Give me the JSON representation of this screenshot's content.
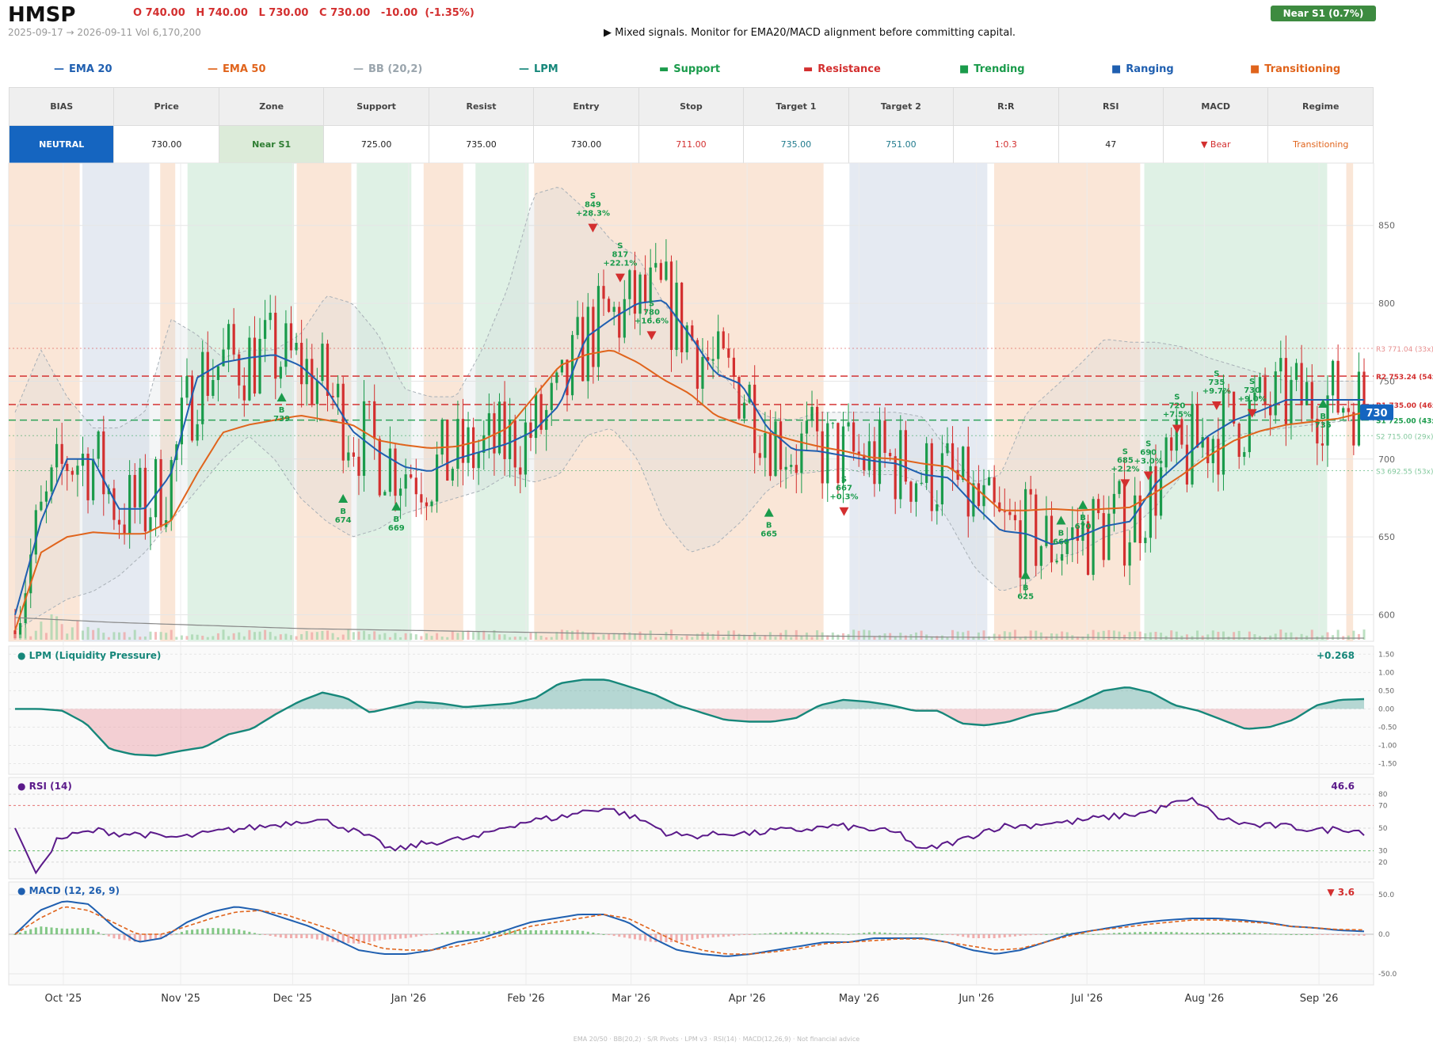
{
  "header": {
    "ticker": "HMSP",
    "ohlc": "O 740.00   H 740.00   L 730.00   C 730.00   -10.00  (-1.35%)",
    "range": "2025-09-17 → 2026-09-11   Vol 6,170,200",
    "signal": "▶  Mixed signals. Monitor for EMA20/MACD alignment before committing capital.",
    "badge": "Near S1  (0.7%)"
  },
  "legend": [
    {
      "label": "EMA 20",
      "symbol": "—",
      "color": "#1f5fb0"
    },
    {
      "label": "EMA 50",
      "symbol": "—",
      "color": "#e0641c"
    },
    {
      "label": "BB (20,2)",
      "symbol": "—",
      "color": "#9aa5ad"
    },
    {
      "label": "LPM",
      "symbol": "—",
      "color": "#16877a"
    },
    {
      "label": "Support",
      "symbol": "▬",
      "color": "#1a9b4b"
    },
    {
      "label": "Resistance",
      "symbol": "▬",
      "color": "#d32f2f"
    },
    {
      "label": "Trending",
      "symbol": "■",
      "color": "#1a9b4b"
    },
    {
      "label": "Ranging",
      "symbol": "■",
      "color": "#1f5fb0"
    },
    {
      "label": "Transitioning",
      "symbol": "■",
      "color": "#e0641c"
    }
  ],
  "summary_table": {
    "headers": [
      "BIAS",
      "Price",
      "Zone",
      "Support",
      "Resist",
      "Entry",
      "Stop",
      "Target 1",
      "Target 2",
      "R:R",
      "RSI",
      "MACD",
      "Regime"
    ],
    "values": [
      "NEUTRAL",
      "730.00",
      "Near S1",
      "725.00",
      "735.00",
      "730.00",
      "711.00",
      "735.00",
      "751.00",
      "1:0.3",
      "47",
      "▼ Bear",
      "Transitioning"
    ],
    "colors": [
      "#ffffff",
      "#222222",
      "#2e7d32",
      "#222222",
      "#222222",
      "#222222",
      "#d32f2f",
      "#1f7a8c",
      "#1f7a8c",
      "#d32f2f",
      "#222222",
      "#d32f2f",
      "#e0641c"
    ],
    "backgrounds": [
      "#1565c0",
      "#ffffff",
      "#dcebd9",
      "#ffffff",
      "#ffffff",
      "#ffffff",
      "#ffffff",
      "#ffffff",
      "#ffffff",
      "#ffffff",
      "#ffffff",
      "#ffffff",
      "#ffffff"
    ]
  },
  "chart_data": [
    {
      "type": "candlestick",
      "title": "",
      "x_ticks": [
        "Oct '25",
        "Nov '25",
        "Dec '25",
        "Jan '26",
        "Feb '26",
        "Mar '26",
        "Apr '26",
        "May '26",
        "Jun '26",
        "Jul '26",
        "Aug '26",
        "Sep '26"
      ],
      "y_ticks": [
        600,
        650,
        700,
        750,
        800,
        850
      ],
      "ylim": [
        583,
        890
      ],
      "last_price": "730",
      "levels": [
        {
          "label": "R3 771.04 (33x)",
          "value": 771.04,
          "kind": "resistance",
          "style": "dotted"
        },
        {
          "label": "R2 753.24 (54x)",
          "value": 753.24,
          "kind": "resistance",
          "style": "dashed"
        },
        {
          "label": "R1 735.00 (46x)",
          "value": 735.0,
          "kind": "resistance",
          "style": "dashed"
        },
        {
          "label": "S1 725.00 (43x)",
          "value": 725.0,
          "kind": "support",
          "style": "dashed"
        },
        {
          "label": "S2 715.00 (29x)",
          "value": 715.0,
          "kind": "support",
          "style": "dotted"
        },
        {
          "label": "S3 692.55 (53x)",
          "value": 692.55,
          "kind": "support",
          "style": "dotted"
        }
      ],
      "series": [
        {
          "name": "EMA 20",
          "values": [
            600,
            660,
            700,
            700,
            668,
            668,
            690,
            752,
            762,
            765,
            767,
            760,
            745,
            718,
            705,
            695,
            692,
            700,
            705,
            710,
            718,
            735,
            778,
            790,
            800,
            802,
            780,
            755,
            748,
            720,
            706,
            705,
            702,
            699,
            697,
            690,
            688,
            670,
            654,
            652,
            645,
            650,
            657,
            660,
            685,
            700,
            715,
            725,
            731,
            738,
            738,
            738,
            738
          ]
        },
        {
          "name": "EMA 50",
          "values": [
            590,
            640,
            650,
            653,
            652,
            652,
            660,
            690,
            717,
            722,
            725,
            728,
            725,
            722,
            712,
            709,
            707,
            708,
            712,
            720,
            740,
            760,
            767,
            770,
            762,
            751,
            742,
            728,
            722,
            717,
            712,
            708,
            705,
            701,
            700,
            697,
            695,
            682,
            667,
            667,
            668,
            667,
            668,
            669,
            679,
            690,
            702,
            712,
            718,
            722,
            724,
            726,
            730
          ]
        },
        {
          "name": "BB Upper",
          "values": [
            730,
            770,
            740,
            720,
            720,
            730,
            790,
            780,
            765,
            770,
            770,
            780,
            805,
            800,
            780,
            745,
            740,
            740,
            770,
            810,
            870,
            875,
            860,
            840,
            830,
            800,
            780,
            760,
            740,
            727,
            725,
            730,
            730,
            730,
            730,
            727,
            705,
            685,
            690,
            730,
            745,
            760,
            777,
            775,
            775,
            772,
            765,
            760,
            755,
            750,
            750,
            750,
            750
          ]
        },
        {
          "name": "BB Lower",
          "values": [
            590,
            600,
            610,
            615,
            625,
            640,
            660,
            680,
            700,
            715,
            700,
            675,
            660,
            650,
            655,
            665,
            670,
            675,
            680,
            690,
            685,
            690,
            715,
            720,
            700,
            660,
            640,
            645,
            660,
            680,
            690,
            692,
            694,
            690,
            690,
            685,
            660,
            630,
            615,
            620,
            635,
            640,
            650,
            655,
            670,
            690,
            705,
            715,
            718,
            720,
            722,
            724,
            725
          ]
        }
      ],
      "signals": [
        {
          "label": "B 739",
          "value": 739,
          "direction": "buy"
        },
        {
          "label": "B 674",
          "value": 674,
          "direction": "buy"
        },
        {
          "label": "B 669",
          "value": 669,
          "direction": "buy"
        },
        {
          "label": "S 849 +28.3%",
          "value": 849,
          "direction": "sell"
        },
        {
          "label": "S 817 +22.1%",
          "value": 817,
          "direction": "sell"
        },
        {
          "label": "S 780 +16.6%",
          "value": 780,
          "direction": "sell"
        },
        {
          "label": "B 665",
          "value": 665,
          "direction": "buy"
        },
        {
          "label": "S 667 +0.3%",
          "value": 667,
          "direction": "sell"
        },
        {
          "label": "B 625",
          "value": 625,
          "direction": "buy"
        },
        {
          "label": "B 660",
          "value": 660,
          "direction": "buy"
        },
        {
          "label": "B 670",
          "value": 670,
          "direction": "buy"
        },
        {
          "label": "S 685 +2.2%",
          "value": 685,
          "direction": "sell"
        },
        {
          "label": "S 690 +3.0%",
          "value": 690,
          "direction": "sell"
        },
        {
          "label": "S 720 +7.5%",
          "value": 720,
          "direction": "sell"
        },
        {
          "label": "S 735 +9.7%",
          "value": 735,
          "direction": "sell"
        },
        {
          "label": "S 730 +9.0%",
          "value": 730,
          "direction": "sell"
        },
        {
          "label": "B 735",
          "value": 735,
          "direction": "buy"
        }
      ],
      "regimes": [
        {
          "label": "Transitioning",
          "color": "#f9e3d3"
        },
        {
          "label": "Ranging",
          "color": "#e2e8f1"
        },
        {
          "label": "Transitioning",
          "color": "#f9e3d3"
        },
        {
          "label": "Trending",
          "color": "#dcf0e2"
        },
        {
          "label": "Transitioning",
          "color": "#f9e3d3"
        },
        {
          "label": "Trending",
          "color": "#dcf0e2"
        },
        {
          "label": "Transitioning",
          "color": "#f9e3d3"
        },
        {
          "label": "Trending",
          "color": "#dcf0e2"
        },
        {
          "label": "Transitioning",
          "color": "#f9e3d3"
        },
        {
          "label": "Ranging",
          "color": "#e2e8f1"
        },
        {
          "label": "Transitioning",
          "color": "#f9e3d3"
        },
        {
          "label": "Trending",
          "color": "#dcf0e2"
        },
        {
          "label": "Transitioning",
          "color": "#f9e3d3"
        }
      ]
    },
    {
      "type": "area",
      "title": "LPM (Liquidity Pressure)",
      "last_value": "+0.268",
      "y_ticks": [
        "1.50",
        "1.00",
        "0.50",
        "0.00",
        "-0.50",
        "-1.00",
        "-1.50"
      ],
      "ylim": [
        -1.75,
        1.55
      ],
      "values": [
        0,
        0,
        -0.05,
        -0.4,
        -1.1,
        -1.25,
        -1.28,
        -1.15,
        -1.05,
        -0.7,
        -0.55,
        -0.15,
        0.2,
        0.45,
        0.3,
        -0.1,
        0.05,
        0.2,
        0.15,
        0.05,
        0.1,
        0.15,
        0.3,
        0.7,
        0.8,
        0.8,
        0.6,
        0.4,
        0.1,
        -0.1,
        -0.3,
        -0.35,
        -0.35,
        -0.25,
        0.1,
        0.25,
        0.2,
        0.1,
        -0.05,
        -0.05,
        -0.4,
        -0.45,
        -0.35,
        -0.15,
        -0.05,
        0.2,
        0.5,
        0.6,
        0.45,
        0.1,
        -0.05,
        -0.3,
        -0.55,
        -0.5,
        -0.3,
        0.1,
        0.25,
        0.27
      ]
    },
    {
      "type": "line",
      "title": "RSI (14)",
      "last_value": "46.6",
      "y_ticks": [
        80,
        70,
        50,
        30,
        20
      ],
      "ylim": [
        8,
        92
      ],
      "values": [
        50,
        10,
        40,
        45,
        48,
        45,
        45,
        42,
        42,
        45,
        48,
        50,
        52,
        55,
        58,
        55,
        48,
        40,
        30,
        35,
        38,
        40,
        42,
        50,
        55,
        58,
        60,
        65,
        68,
        62,
        55,
        45,
        43,
        44,
        46,
        45,
        48,
        48,
        50,
        52,
        50,
        48,
        45,
        30,
        35,
        40,
        48,
        52,
        52,
        55,
        55,
        58,
        60,
        62,
        65,
        72,
        75,
        60,
        55,
        52,
        52,
        50,
        48,
        50,
        46.6
      ]
    },
    {
      "type": "line",
      "title": "MACD (12, 26, 9)",
      "last_value": "▼ 3.6",
      "y_ticks": [
        "50.0",
        "0.0",
        "-50.0"
      ],
      "ylim": [
        -60,
        62
      ],
      "series": [
        {
          "name": "MACD",
          "values": [
            0,
            30,
            42,
            38,
            10,
            -10,
            -5,
            15,
            28,
            35,
            30,
            20,
            10,
            -5,
            -20,
            -25,
            -25,
            -20,
            -10,
            -5,
            5,
            15,
            20,
            25,
            25,
            15,
            -5,
            -20,
            -25,
            -28,
            -25,
            -20,
            -15,
            -10,
            -10,
            -5,
            -5,
            -5,
            -10,
            -20,
            -25,
            -20,
            -10,
            0,
            5,
            10,
            15,
            18,
            20,
            20,
            18,
            15,
            10,
            8,
            5,
            3.6
          ]
        },
        {
          "name": "Signal",
          "values": [
            0,
            20,
            35,
            30,
            15,
            0,
            0,
            10,
            20,
            28,
            30,
            25,
            15,
            5,
            -8,
            -18,
            -20,
            -20,
            -15,
            -8,
            0,
            10,
            15,
            20,
            25,
            20,
            5,
            -10,
            -20,
            -25,
            -25,
            -22,
            -18,
            -12,
            -10,
            -8,
            -6,
            -6,
            -10,
            -15,
            -20,
            -18,
            -10,
            -2,
            5,
            8,
            12,
            15,
            18,
            18,
            16,
            14,
            10,
            8,
            6,
            5.5
          ]
        }
      ]
    }
  ],
  "footer": "EMA 20/50  ·  BB(20,2)  ·  S/R Pivots  ·  LPM v3  ·  RSI(14)  ·  MACD(12,26,9)  ·  Not financial advice"
}
